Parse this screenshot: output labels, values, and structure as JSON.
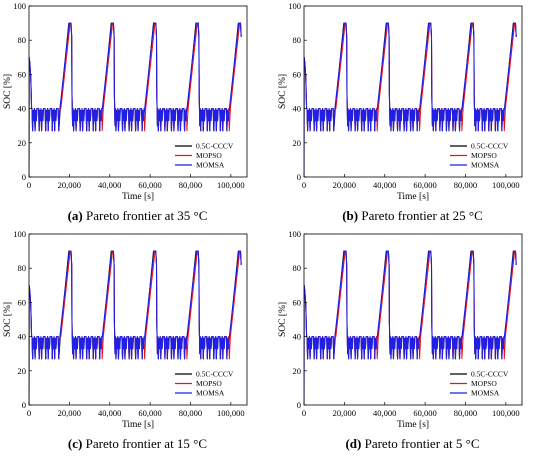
{
  "chart_data": [
    {
      "type": "line",
      "panel_id": "(a)",
      "caption": "Pareto frontier at 35 °C",
      "xlabel": "Time [s]",
      "ylabel": "SOC [%]",
      "xlim": [
        0,
        108000
      ],
      "ylim": [
        0,
        100
      ],
      "xticks": [
        0,
        20000,
        40000,
        60000,
        80000,
        100000
      ],
      "xtick_labels": [
        "0",
        "20,000",
        "40,000",
        "60,000",
        "80,000",
        "100,000"
      ],
      "yticks": [
        0,
        20,
        40,
        60,
        80,
        100
      ],
      "ytick_labels": [
        "0",
        "20",
        "40",
        "60",
        "80",
        "100"
      ],
      "grid": false,
      "legend_position": "bottom-right",
      "series": [
        {
          "name": "0.5C-CCCV",
          "color": "#000000"
        },
        {
          "name": "MOPSO",
          "color": "#e8141a"
        },
        {
          "name": "MOMSA",
          "color": "#1f1fe6"
        }
      ],
      "cycle_period_s": 21000,
      "soc_max": 90,
      "soc_discharge_band": [
        27,
        40
      ]
    },
    {
      "type": "line",
      "panel_id": "(b)",
      "caption": "Pareto frontier at 25 °C",
      "xlabel": "Time [s]",
      "ylabel": "SOC [%]",
      "xlim": [
        0,
        108000
      ],
      "ylim": [
        0,
        100
      ],
      "xticks": [
        0,
        20000,
        40000,
        60000,
        80000,
        100000
      ],
      "xtick_labels": [
        "0",
        "20,000",
        "40,000",
        "60,000",
        "80,000",
        "100,000"
      ],
      "yticks": [
        0,
        20,
        40,
        60,
        80,
        100
      ],
      "ytick_labels": [
        "0",
        "20",
        "40",
        "60",
        "80",
        "100"
      ],
      "grid": false,
      "legend_position": "bottom-right",
      "series": [
        {
          "name": "0.5C-CCCV",
          "color": "#000000"
        },
        {
          "name": "MOPSO",
          "color": "#e8141a"
        },
        {
          "name": "MOMSA",
          "color": "#1f1fe6"
        }
      ],
      "cycle_period_s": 21000,
      "soc_max": 90,
      "soc_discharge_band": [
        27,
        40
      ]
    },
    {
      "type": "line",
      "panel_id": "(c)",
      "caption": "Pareto frontier at 15 °C",
      "xlabel": "Time [s]",
      "ylabel": "SOC [%]",
      "xlim": [
        0,
        108000
      ],
      "ylim": [
        0,
        100
      ],
      "xticks": [
        0,
        20000,
        40000,
        60000,
        80000,
        100000
      ],
      "xtick_labels": [
        "0",
        "20,000",
        "40,000",
        "60,000",
        "80,000",
        "100,000"
      ],
      "yticks": [
        0,
        20,
        40,
        60,
        80,
        100
      ],
      "ytick_labels": [
        "0",
        "20",
        "40",
        "60",
        "80",
        "100"
      ],
      "grid": false,
      "legend_position": "bottom-right",
      "series": [
        {
          "name": "0.5C-CCCV",
          "color": "#000000"
        },
        {
          "name": "MOPSO",
          "color": "#e8141a"
        },
        {
          "name": "MOMSA",
          "color": "#1f1fe6"
        }
      ],
      "cycle_period_s": 21000,
      "soc_max": 90,
      "soc_discharge_band": [
        27,
        40
      ]
    },
    {
      "type": "line",
      "panel_id": "(d)",
      "caption": "Pareto frontier at 5 °C",
      "xlabel": "Time [s]",
      "ylabel": "SOC [%]",
      "xlim": [
        0,
        108000
      ],
      "ylim": [
        0,
        100
      ],
      "xticks": [
        0,
        20000,
        40000,
        60000,
        80000,
        100000
      ],
      "xtick_labels": [
        "0",
        "20,000",
        "40,000",
        "60,000",
        "80,000",
        "100,000"
      ],
      "yticks": [
        0,
        20,
        40,
        60,
        80,
        100
      ],
      "ytick_labels": [
        "0",
        "20",
        "40",
        "60",
        "80",
        "100"
      ],
      "grid": false,
      "legend_position": "bottom-right",
      "series": [
        {
          "name": "0.5C-CCCV",
          "color": "#000000"
        },
        {
          "name": "MOPSO",
          "color": "#e8141a"
        },
        {
          "name": "MOMSA",
          "color": "#1f1fe6"
        }
      ],
      "cycle_period_s": 21000,
      "soc_max": 90,
      "soc_discharge_band": [
        27,
        40
      ]
    }
  ]
}
